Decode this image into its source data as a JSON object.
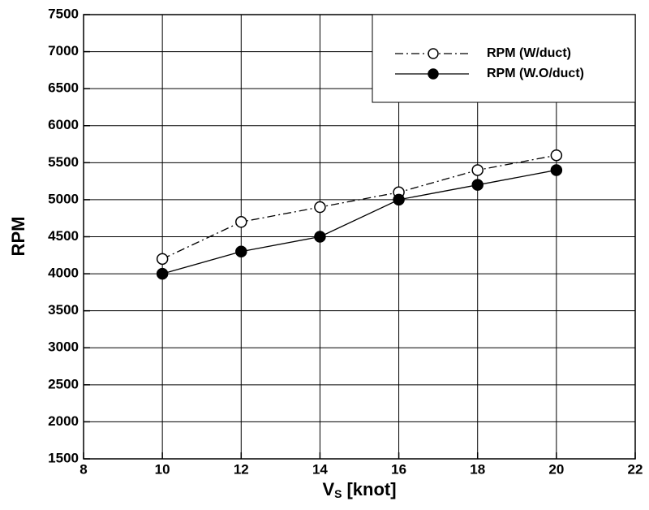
{
  "chart_data": {
    "type": "line",
    "x": [
      10,
      12,
      14,
      16,
      18,
      20
    ],
    "series": [
      {
        "name": "RPM (W/duct)",
        "color": "#000000",
        "linestyle": "dashdot",
        "marker": "open",
        "values": [
          4200,
          4700,
          4900,
          5100,
          5400,
          5600
        ]
      },
      {
        "name": "RPM (W.O/duct)",
        "color": "#000000",
        "linestyle": "solid",
        "marker": "filled",
        "values": [
          4000,
          4300,
          4500,
          5000,
          5200,
          5400
        ]
      }
    ],
    "xlabel": "V",
    "xlabel_subscript": "S",
    "xlabel_unit": "[knot]",
    "ylabel": "RPM",
    "xlim": [
      8,
      22
    ],
    "xticks": [
      8,
      10,
      12,
      14,
      16,
      18,
      20,
      22
    ],
    "ylim": [
      1500,
      7500
    ],
    "yticks": [
      1500,
      2000,
      2500,
      3000,
      3500,
      4000,
      4500,
      5000,
      5500,
      6000,
      6500,
      7000,
      7500
    ],
    "grid": true,
    "legend": "upper right"
  }
}
